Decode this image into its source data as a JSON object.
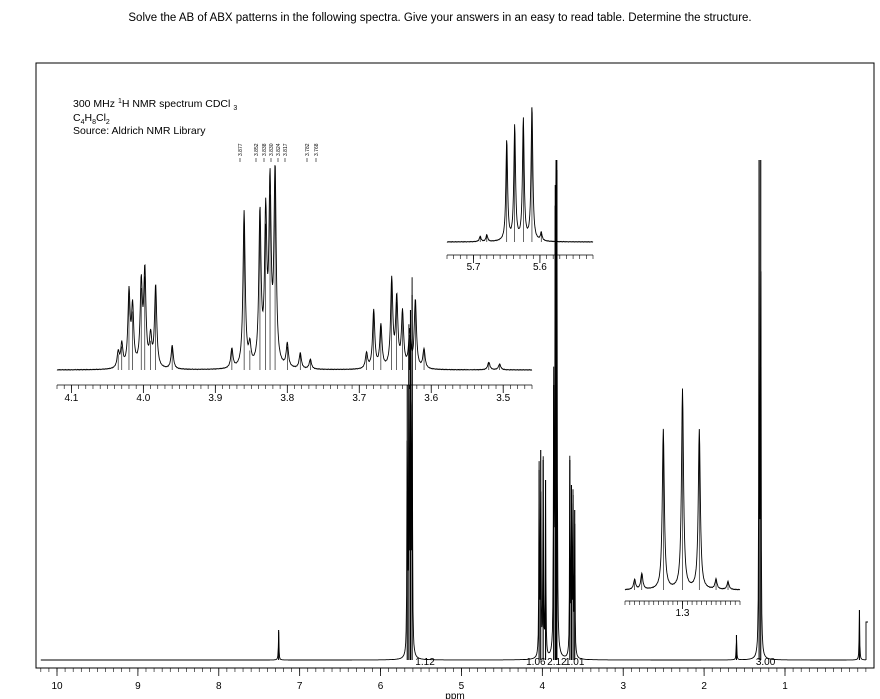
{
  "question": "Solve the AB of ABX patterns in the following spectra.  Give your answers in an easy to read table.  Determine the structure.",
  "chart_data": {
    "type": "line",
    "title": {
      "line1_main": "300 MHz ",
      "line1_sup": "1",
      "line1_rest": "H NMR spectrum CDCl",
      "line1_sub": "3",
      "formula": [
        "C",
        "4",
        "H",
        "8",
        "Cl",
        "2"
      ],
      "source": "Source: Aldrich NMR Library"
    },
    "xlabel": "ppm",
    "main": {
      "xlim": [
        10.2,
        0.1
      ],
      "ticks": [
        "10",
        "9",
        "8",
        "7",
        "6",
        "5",
        "4",
        "3",
        "2",
        "1"
      ],
      "peaks": [
        {
          "ppm": 7.26,
          "h": 0.06
        },
        {
          "ppm": 5.67,
          "h": 0.55
        },
        {
          "ppm": 5.65,
          "h": 0.62
        },
        {
          "ppm": 5.63,
          "h": 0.7
        },
        {
          "ppm": 5.61,
          "h": 0.73
        },
        {
          "ppm": 4.04,
          "h": 0.38
        },
        {
          "ppm": 4.02,
          "h": 0.42
        },
        {
          "ppm": 3.99,
          "h": 0.4
        },
        {
          "ppm": 3.96,
          "h": 0.36
        },
        {
          "ppm": 3.86,
          "h": 0.55
        },
        {
          "ppm": 3.84,
          "h": 0.95
        },
        {
          "ppm": 3.83,
          "h": 0.9
        },
        {
          "ppm": 3.82,
          "h": 0.98
        },
        {
          "ppm": 3.66,
          "h": 0.4
        },
        {
          "ppm": 3.64,
          "h": 0.35
        },
        {
          "ppm": 3.62,
          "h": 0.33
        },
        {
          "ppm": 3.6,
          "h": 0.3
        },
        {
          "ppm": 1.6,
          "h": 0.05
        },
        {
          "ppm": 1.32,
          "h": 1.0
        },
        {
          "ppm": 1.3,
          "h": 1.0
        },
        {
          "ppm": 0.08,
          "h": 0.1
        }
      ],
      "integrals": [
        {
          "label": "1.12",
          "ppm": 5.45
        },
        {
          "label": "1.06",
          "ppm": 4.08
        },
        {
          "label": "2.12",
          "ppm": 3.82
        },
        {
          "label": "1.01",
          "ppm": 3.6
        },
        {
          "label": "3.00",
          "ppm": 1.24
        }
      ]
    },
    "inset_abx": {
      "xlim": [
        4.12,
        3.46
      ],
      "ticks": [
        "4.1",
        "4.0",
        "3.9",
        "3.8",
        "3.7",
        "3.6",
        "3.5"
      ],
      "peak_labels": [
        "3.877",
        "3.852",
        "3.838",
        "3.830",
        "3.824",
        "3.817",
        "3.782",
        "3.768"
      ],
      "peaks": [
        {
          "ppm": 4.035,
          "h": 0.08
        },
        {
          "ppm": 4.03,
          "h": 0.12
        },
        {
          "ppm": 4.02,
          "h": 0.38
        },
        {
          "ppm": 4.015,
          "h": 0.3
        },
        {
          "ppm": 4.003,
          "h": 0.42
        },
        {
          "ppm": 3.998,
          "h": 0.48
        },
        {
          "ppm": 3.99,
          "h": 0.15
        },
        {
          "ppm": 3.983,
          "h": 0.42
        },
        {
          "ppm": 3.96,
          "h": 0.12
        },
        {
          "ppm": 3.877,
          "h": 0.1
        },
        {
          "ppm": 3.86,
          "h": 0.8
        },
        {
          "ppm": 3.852,
          "h": 0.1
        },
        {
          "ppm": 3.838,
          "h": 0.78
        },
        {
          "ppm": 3.83,
          "h": 0.75
        },
        {
          "ppm": 3.824,
          "h": 0.9
        },
        {
          "ppm": 3.817,
          "h": 1.0
        },
        {
          "ppm": 3.8,
          "h": 0.12
        },
        {
          "ppm": 3.782,
          "h": 0.08
        },
        {
          "ppm": 3.768,
          "h": 0.05
        },
        {
          "ppm": 3.69,
          "h": 0.08
        },
        {
          "ppm": 3.68,
          "h": 0.3
        },
        {
          "ppm": 3.67,
          "h": 0.22
        },
        {
          "ppm": 3.655,
          "h": 0.45
        },
        {
          "ppm": 3.648,
          "h": 0.35
        },
        {
          "ppm": 3.64,
          "h": 0.28
        },
        {
          "ppm": 3.63,
          "h": 0.18
        },
        {
          "ppm": 3.622,
          "h": 0.35
        },
        {
          "ppm": 3.61,
          "h": 0.1
        },
        {
          "ppm": 3.52,
          "h": 0.04
        },
        {
          "ppm": 3.505,
          "h": 0.03
        }
      ]
    },
    "inset_vinyl": {
      "xlim": [
        5.74,
        5.52
      ],
      "ticks": [
        "5.7",
        "5.6"
      ],
      "peaks": [
        {
          "ppm": 5.69,
          "h": 0.04
        },
        {
          "ppm": 5.68,
          "h": 0.05
        },
        {
          "ppm": 5.65,
          "h": 0.75
        },
        {
          "ppm": 5.638,
          "h": 0.85
        },
        {
          "ppm": 5.625,
          "h": 0.9
        },
        {
          "ppm": 5.612,
          "h": 1.0
        },
        {
          "ppm": 5.598,
          "h": 0.06
        }
      ]
    },
    "inset_methyl": {
      "xlim": [
        1.42,
        1.18
      ],
      "ticks": [
        "1.3"
      ],
      "peaks": [
        {
          "ppm": 1.4,
          "h": 0.05
        },
        {
          "ppm": 1.385,
          "h": 0.08
        },
        {
          "ppm": 1.34,
          "h": 0.8
        },
        {
          "ppm": 1.3,
          "h": 1.0
        },
        {
          "ppm": 1.265,
          "h": 0.8
        },
        {
          "ppm": 1.23,
          "h": 0.05
        },
        {
          "ppm": 1.205,
          "h": 0.04
        }
      ]
    }
  }
}
